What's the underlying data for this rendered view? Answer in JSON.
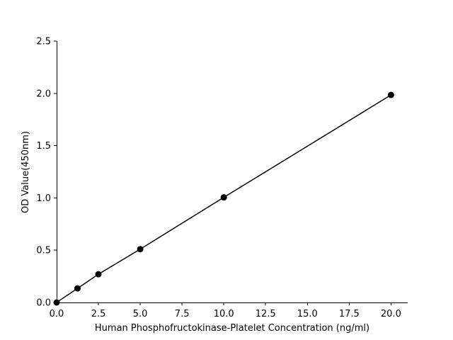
{
  "chart_data": {
    "type": "line",
    "title": "",
    "xlabel": "Human Phosphofructokinase-Platelet Concentration (ng/ml)",
    "ylabel": "OD Value(450nm)",
    "xlim": [
      0,
      21
    ],
    "ylim": [
      0,
      2.5
    ],
    "x_ticks": [
      "0.0",
      "2.5",
      "5.0",
      "7.5",
      "10.0",
      "12.5",
      "15.0",
      "17.5",
      "20.0"
    ],
    "y_ticks": [
      "0.0",
      "0.5",
      "1.0",
      "1.5",
      "2.0",
      "2.5"
    ],
    "grid": false,
    "series": [
      {
        "x": [
          0,
          1.25,
          2.5,
          5,
          10,
          20
        ],
        "y": [
          0.0,
          0.135,
          0.27,
          0.51,
          1.005,
          1.985
        ],
        "color": "#000000",
        "marker": "circle"
      }
    ]
  }
}
